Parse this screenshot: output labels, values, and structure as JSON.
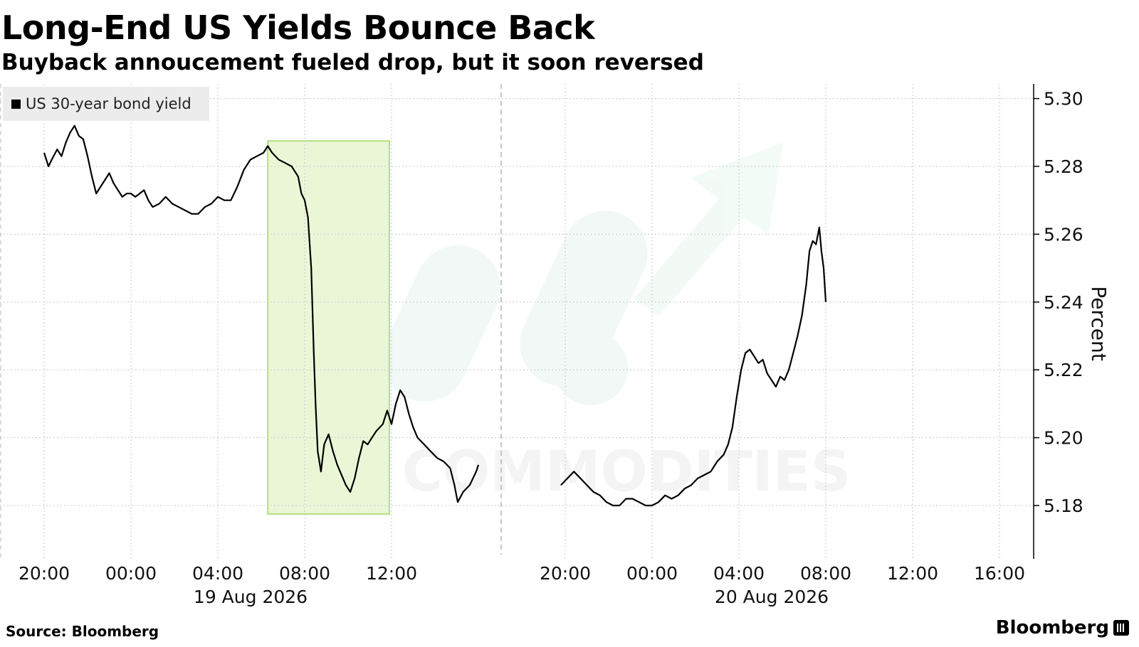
{
  "header": {
    "title": "Long-End US Yields Bounce Back",
    "subtitle": "Buyback annoucement fueled drop, but it soon reversed"
  },
  "footer": {
    "source": "Source: Bloomberg",
    "brand": "Bloomberg"
  },
  "watermark": "COMMODITIES",
  "colors": {
    "line": "#000000",
    "highlight_fill": "#e8f5d0",
    "highlight_stroke": "#b5df7e",
    "grid": "#c8c8c8",
    "legend_bg": "#ececec"
  },
  "chart_data": {
    "type": "line",
    "title": "Long-End US Yields Bounce Back",
    "subtitle": "Buyback annoucement fueled drop, but it soon reversed",
    "ylabel": "Percent",
    "ylim": [
      5.165,
      5.305
    ],
    "y_ticks": [
      "5.18",
      "5.20",
      "5.22",
      "5.24",
      "5.26",
      "5.28",
      "5.30"
    ],
    "y_axis_side": "right",
    "grid": true,
    "legend": {
      "position": "top-left",
      "entries": [
        "US 30-year bond yield"
      ]
    },
    "x_ticks": [
      {
        "label": "20:00",
        "t": 0
      },
      {
        "label": "00:00",
        "t": 4
      },
      {
        "label": "04:00",
        "t": 8,
        "date": "19 Aug 2026"
      },
      {
        "label": "08:00",
        "t": 12
      },
      {
        "label": "12:00",
        "t": 16
      },
      {
        "label": "20:00",
        "t": 24
      },
      {
        "label": "00:00",
        "t": 28
      },
      {
        "label": "04:00",
        "t": 32,
        "date": "20 Aug 2026"
      },
      {
        "label": "08:00",
        "t": 36
      },
      {
        "label": "12:00",
        "t": 40
      },
      {
        "label": "16:00",
        "t": 44
      }
    ],
    "session_break_t": 21.05,
    "highlight": {
      "x_range": [
        10.3,
        15.9
      ],
      "y_range": [
        5.1775,
        5.2875
      ]
    },
    "series": [
      {
        "name": "US 30-year bond yield",
        "points": [
          [
            0.0,
            5.284
          ],
          [
            0.2,
            5.28
          ],
          [
            0.35,
            5.282
          ],
          [
            0.6,
            5.285
          ],
          [
            0.8,
            5.283
          ],
          [
            1.0,
            5.287
          ],
          [
            1.2,
            5.29
          ],
          [
            1.4,
            5.292
          ],
          [
            1.6,
            5.289
          ],
          [
            1.8,
            5.288
          ],
          [
            2.0,
            5.283
          ],
          [
            2.2,
            5.277
          ],
          [
            2.4,
            5.272
          ],
          [
            2.6,
            5.274
          ],
          [
            2.8,
            5.276
          ],
          [
            3.0,
            5.278
          ],
          [
            3.2,
            5.275
          ],
          [
            3.4,
            5.273
          ],
          [
            3.6,
            5.271
          ],
          [
            3.8,
            5.272
          ],
          [
            4.0,
            5.272
          ],
          [
            4.2,
            5.271
          ],
          [
            4.4,
            5.272
          ],
          [
            4.6,
            5.273
          ],
          [
            4.8,
            5.27
          ],
          [
            5.0,
            5.268
          ],
          [
            5.3,
            5.269
          ],
          [
            5.6,
            5.271
          ],
          [
            5.9,
            5.269
          ],
          [
            6.2,
            5.268
          ],
          [
            6.5,
            5.267
          ],
          [
            6.8,
            5.266
          ],
          [
            7.1,
            5.266
          ],
          [
            7.4,
            5.268
          ],
          [
            7.7,
            5.269
          ],
          [
            8.0,
            5.271
          ],
          [
            8.3,
            5.27
          ],
          [
            8.6,
            5.27
          ],
          [
            8.9,
            5.274
          ],
          [
            9.2,
            5.279
          ],
          [
            9.5,
            5.282
          ],
          [
            9.8,
            5.283
          ],
          [
            10.1,
            5.284
          ],
          [
            10.3,
            5.286
          ],
          [
            10.5,
            5.284
          ],
          [
            10.8,
            5.282
          ],
          [
            11.1,
            5.281
          ],
          [
            11.4,
            5.28
          ],
          [
            11.7,
            5.277
          ],
          [
            11.85,
            5.272
          ],
          [
            12.0,
            5.27
          ],
          [
            12.15,
            5.265
          ],
          [
            12.3,
            5.25
          ],
          [
            12.42,
            5.225
          ],
          [
            12.5,
            5.21
          ],
          [
            12.6,
            5.196
          ],
          [
            12.75,
            5.19
          ],
          [
            12.9,
            5.198
          ],
          [
            13.1,
            5.201
          ],
          [
            13.3,
            5.196
          ],
          [
            13.5,
            5.192
          ],
          [
            13.7,
            5.189
          ],
          [
            13.9,
            5.186
          ],
          [
            14.1,
            5.184
          ],
          [
            14.3,
            5.188
          ],
          [
            14.5,
            5.194
          ],
          [
            14.7,
            5.199
          ],
          [
            14.9,
            5.198
          ],
          [
            15.1,
            5.2
          ],
          [
            15.3,
            5.202
          ],
          [
            15.6,
            5.204
          ],
          [
            15.8,
            5.208
          ],
          [
            16.0,
            5.204
          ],
          [
            16.2,
            5.21
          ],
          [
            16.4,
            5.214
          ],
          [
            16.6,
            5.212
          ],
          [
            16.8,
            5.207
          ],
          [
            17.0,
            5.203
          ],
          [
            17.2,
            5.2
          ],
          [
            17.5,
            5.198
          ],
          [
            17.8,
            5.196
          ],
          [
            18.1,
            5.194
          ],
          [
            18.4,
            5.193
          ],
          [
            18.7,
            5.191
          ],
          [
            18.9,
            5.186
          ],
          [
            19.05,
            5.181
          ],
          [
            19.3,
            5.184
          ],
          [
            19.6,
            5.186
          ],
          [
            19.9,
            5.19
          ],
          [
            20.0,
            5.192
          ],
          [
            null,
            null
          ],
          [
            23.8,
            5.186
          ],
          [
            24.1,
            5.188
          ],
          [
            24.4,
            5.19
          ],
          [
            24.7,
            5.188
          ],
          [
            25.0,
            5.186
          ],
          [
            25.3,
            5.184
          ],
          [
            25.6,
            5.183
          ],
          [
            25.9,
            5.181
          ],
          [
            26.2,
            5.18
          ],
          [
            26.5,
            5.18
          ],
          [
            26.8,
            5.182
          ],
          [
            27.1,
            5.182
          ],
          [
            27.4,
            5.181
          ],
          [
            27.7,
            5.18
          ],
          [
            28.0,
            5.18
          ],
          [
            28.3,
            5.181
          ],
          [
            28.6,
            5.183
          ],
          [
            28.9,
            5.182
          ],
          [
            29.2,
            5.183
          ],
          [
            29.5,
            5.185
          ],
          [
            29.8,
            5.186
          ],
          [
            30.1,
            5.188
          ],
          [
            30.4,
            5.189
          ],
          [
            30.7,
            5.19
          ],
          [
            31.0,
            5.193
          ],
          [
            31.3,
            5.195
          ],
          [
            31.5,
            5.198
          ],
          [
            31.7,
            5.203
          ],
          [
            31.9,
            5.212
          ],
          [
            32.1,
            5.22
          ],
          [
            32.3,
            5.225
          ],
          [
            32.5,
            5.226
          ],
          [
            32.7,
            5.224
          ],
          [
            32.9,
            5.222
          ],
          [
            33.1,
            5.223
          ],
          [
            33.3,
            5.219
          ],
          [
            33.5,
            5.217
          ],
          [
            33.7,
            5.215
          ],
          [
            33.9,
            5.218
          ],
          [
            34.1,
            5.217
          ],
          [
            34.3,
            5.22
          ],
          [
            34.5,
            5.225
          ],
          [
            34.7,
            5.23
          ],
          [
            34.9,
            5.236
          ],
          [
            35.1,
            5.245
          ],
          [
            35.25,
            5.255
          ],
          [
            35.4,
            5.258
          ],
          [
            35.55,
            5.257
          ],
          [
            35.7,
            5.262
          ],
          [
            35.8,
            5.255
          ],
          [
            35.9,
            5.25
          ],
          [
            36.0,
            5.24
          ]
        ]
      }
    ]
  }
}
